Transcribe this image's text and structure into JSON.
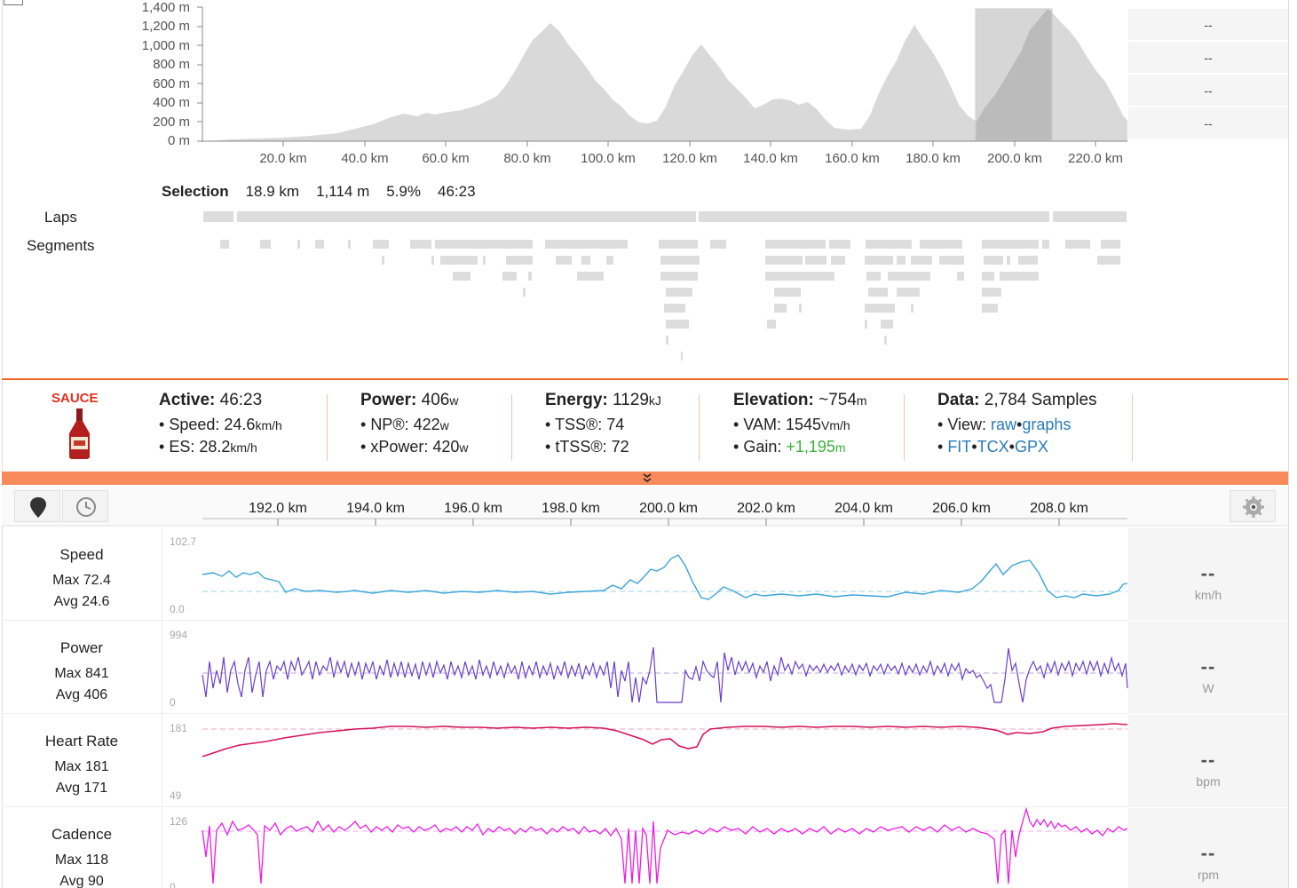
{
  "elevation_chart": {
    "y_labels": [
      "1,400 m",
      "1,200 m",
      "1,000 m",
      "800 m",
      "600 m",
      "400 m",
      "200 m",
      "0 m"
    ],
    "x_labels": [
      "20.0 km",
      "40.0 km",
      "60.0 km",
      "80.0 km",
      "100.0 km",
      "120.0 km",
      "140.0 km",
      "160.0 km",
      "180.0 km",
      "200.0 km",
      "220.0 km"
    ],
    "side_values": [
      "--",
      "--",
      "--",
      "--"
    ],
    "fill_color": "#d9d9d9",
    "selection_color": "#b3b3b3"
  },
  "selection": {
    "label": "Selection",
    "distance": "18.9 km",
    "elevation": "1,114 m",
    "grade": "5.9%",
    "time": "46:23"
  },
  "rows": {
    "laps": "Laps",
    "segments": "Segments"
  },
  "sauce": {
    "logo_text": "SAUCE"
  },
  "stats": {
    "active": {
      "label": "Active:",
      "value": "46:23",
      "speed_label": "Speed:",
      "speed": "24.6",
      "speed_unit": "km/h",
      "es_label": "ES:",
      "es": "28.2",
      "es_unit": "km/h"
    },
    "power": {
      "label": "Power:",
      "value": "406",
      "unit": "w",
      "np_label": "NP®:",
      "np": "422",
      "np_unit": "w",
      "xp_label": "xPower:",
      "xp": "420",
      "xp_unit": "w"
    },
    "energy": {
      "label": "Energy:",
      "value": "1129",
      "unit": "kJ",
      "tss_label": "TSS®:",
      "tss": "74",
      "ttss_label": "tTSS®:",
      "ttss": "72"
    },
    "elevation": {
      "label": "Elevation:",
      "value": "~754",
      "unit": "m",
      "vam_label": "VAM:",
      "vam": "1545",
      "vam_unit": "Vm/h",
      "gain_label": "Gain:",
      "gain": "+1,195",
      "gain_unit": "m"
    },
    "data": {
      "label": "Data:",
      "value": "2,784 Samples",
      "view_label": "View:",
      "raw": "raw",
      "graphs": "graphs",
      "fit": "FIT",
      "tcx": "TCX",
      "gpx": "GPX"
    }
  },
  "toolbar": {
    "x_labels": [
      "192.0 km",
      "194.0 km",
      "196.0 km",
      "198.0 km",
      "200.0 km",
      "202.0 km",
      "204.0 km",
      "206.0 km",
      "208.0 km"
    ]
  },
  "charts": [
    {
      "name": "Speed",
      "max": "Max 72.4",
      "avg": "Avg 24.6",
      "ymax": "102.7",
      "ymin": "0.0",
      "side": "--",
      "unit": "km/h",
      "color": "#3ba5d8"
    },
    {
      "name": "Power",
      "max": "Max 841",
      "avg": "Avg 406",
      "ymax": "994",
      "ymin": "0",
      "side": "--",
      "unit": "W",
      "color": "#6a3fc9"
    },
    {
      "name": "Heart Rate",
      "max": "Max 181",
      "avg": "Avg 171",
      "ymax": "181",
      "ymin": "49",
      "side": "--",
      "unit": "bpm",
      "color": "#d4145a"
    },
    {
      "name": "Cadence",
      "max": "Max 118",
      "avg": "Avg 90",
      "ymax": "126",
      "ymin": "0",
      "side": "--",
      "unit": "rpm",
      "color": "#e91ee0"
    }
  ]
}
